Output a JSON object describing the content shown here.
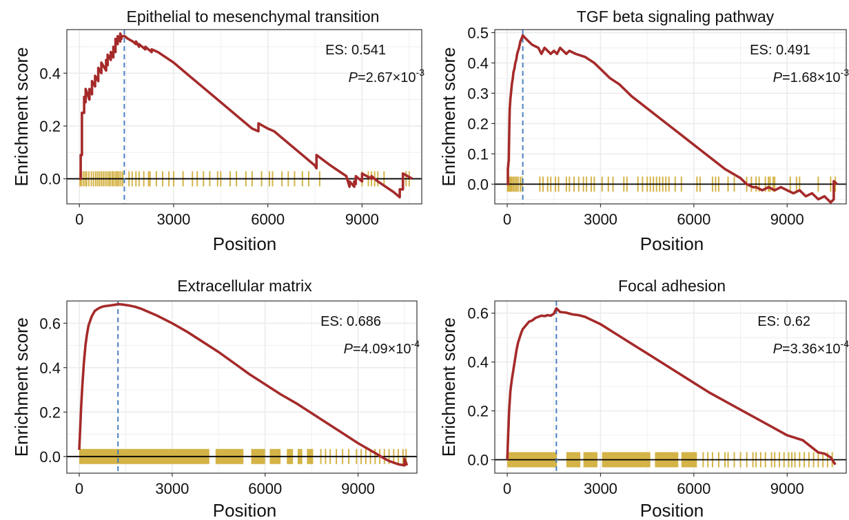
{
  "colors": {
    "curve": "#a52a2a",
    "peak_line": "#4a7fc1",
    "hits": "#d4b347",
    "zero_line": "#000000",
    "grid": "#ebebeb",
    "panel_border": "#333333"
  },
  "chart_data": [
    {
      "type": "line",
      "title": "Epithelial to mesenchymal transition",
      "xlabel": "Position",
      "ylabel": "Enrichment  score",
      "xlim": [
        -400,
        10900
      ],
      "ylim": [
        -0.095,
        0.565
      ],
      "xticks": [
        0,
        3000,
        6000,
        9000
      ],
      "xtick_labels": [
        "0",
        "3000",
        "6000",
        "9000"
      ],
      "yticks": [
        0.0,
        0.2,
        0.4
      ],
      "ytick_labels": [
        "0.0",
        "0.2",
        "0.4"
      ],
      "es_label": "ES: 0.541",
      "p_label": "P",
      "p_value": "=2.67",
      "p_times": "×",
      "p_base": "10",
      "p_exp": "-3",
      "peak_x": 1430,
      "series": [
        {
          "x": [
            0,
            40,
            40,
            80,
            80,
            150,
            150,
            200,
            200,
            320,
            320,
            400,
            400,
            500,
            500,
            600,
            600,
            700,
            700,
            850,
            850,
            900,
            900,
            1000,
            1000,
            1080,
            1080,
            1150,
            1150,
            1220,
            1220,
            1300,
            1300,
            1340,
            1340,
            1430,
            1430,
            1550,
            1700,
            1800,
            1800,
            1900,
            1900,
            2100,
            2100,
            2300,
            2300,
            2500,
            3000,
            3500,
            4000,
            4500,
            5000,
            5500,
            5700,
            5700,
            6000,
            6200,
            6500,
            7000,
            7500,
            7550,
            7550,
            8000,
            8500,
            8600,
            8600,
            8750,
            8750,
            8800,
            8800,
            9000,
            9000,
            9300,
            9300,
            9500,
            10000,
            10200,
            10200,
            10300,
            10300,
            10600
          ],
          "y": [
            0.0,
            0.0,
            0.09,
            0.09,
            0.25,
            0.25,
            0.31,
            0.29,
            0.34,
            0.3,
            0.34,
            0.32,
            0.37,
            0.35,
            0.39,
            0.37,
            0.42,
            0.4,
            0.44,
            0.41,
            0.45,
            0.43,
            0.47,
            0.45,
            0.48,
            0.46,
            0.5,
            0.48,
            0.53,
            0.51,
            0.54,
            0.52,
            0.55,
            0.53,
            0.54,
            0.54,
            0.541,
            0.53,
            0.52,
            0.51,
            0.52,
            0.5,
            0.51,
            0.49,
            0.5,
            0.48,
            0.49,
            0.48,
            0.44,
            0.39,
            0.34,
            0.29,
            0.24,
            0.19,
            0.18,
            0.21,
            0.19,
            0.18,
            0.15,
            0.1,
            0.05,
            0.04,
            0.09,
            0.05,
            0.01,
            -0.03,
            -0.01,
            -0.03,
            -0.01,
            -0.02,
            0.01,
            -0.01,
            0.02,
            0.0,
            0.01,
            -0.01,
            -0.05,
            -0.07,
            -0.04,
            -0.04,
            0.02,
            0.0
          ]
        }
      ],
      "hits": [
        20,
        60,
        120,
        180,
        230,
        300,
        380,
        450,
        520,
        580,
        640,
        700,
        760,
        820,
        880,
        940,
        990,
        1050,
        1100,
        1160,
        1210,
        1260,
        1320,
        1380,
        1580,
        1680,
        1800,
        1900,
        2050,
        2200,
        2250,
        2450,
        2650,
        2850,
        3000,
        3300,
        3600,
        3750,
        3950,
        4150,
        4400,
        4500,
        4800,
        5000,
        5300,
        5500,
        5800,
        6050,
        6150,
        6450,
        6650,
        6850,
        7100,
        7300,
        7650,
        9000,
        9200,
        9300,
        9400,
        9500,
        9700,
        10400,
        10500
      ]
    },
    {
      "type": "line",
      "title": "TGF beta signaling pathway",
      "xlabel": "Position",
      "ylabel": "Enrichment  score",
      "xlim": [
        -400,
        10900
      ],
      "ylim": [
        -0.065,
        0.51
      ],
      "xticks": [
        0,
        3000,
        6000,
        9000
      ],
      "xtick_labels": [
        "0",
        "3000",
        "6000",
        "9000"
      ],
      "yticks": [
        0.0,
        0.1,
        0.2,
        0.3,
        0.4,
        0.5
      ],
      "ytick_labels": [
        "0.0",
        "0.1",
        "0.2",
        "0.3",
        "0.4",
        "0.5"
      ],
      "es_label": "ES: 0.491",
      "p_label": "P",
      "p_value": "=1.68",
      "p_times": "×",
      "p_base": "10",
      "p_exp": "-3",
      "peak_x": 500,
      "series": [
        {
          "x": [
            0,
            20,
            20,
            50,
            60,
            70,
            80,
            100,
            120,
            150,
            180,
            200,
            230,
            260,
            290,
            320,
            350,
            380,
            420,
            460,
            500,
            600,
            800,
            1000,
            1100,
            1200,
            1300,
            1400,
            1500,
            1600,
            1700,
            1800,
            1900,
            2000,
            2200,
            2500,
            2800,
            3000,
            3300,
            3600,
            4000,
            4500,
            5000,
            5500,
            6000,
            6500,
            7000,
            7500,
            7700,
            7900,
            8000,
            8200,
            8400,
            8600,
            8800,
            9000,
            9200,
            9400,
            9600,
            9800,
            10000,
            10200,
            10400,
            10500,
            10500,
            10600
          ],
          "y": [
            0.0,
            0.0,
            0.05,
            0.08,
            0.15,
            0.2,
            0.25,
            0.28,
            0.3,
            0.33,
            0.35,
            0.37,
            0.38,
            0.4,
            0.41,
            0.43,
            0.44,
            0.45,
            0.47,
            0.48,
            0.491,
            0.48,
            0.46,
            0.45,
            0.43,
            0.45,
            0.44,
            0.43,
            0.44,
            0.43,
            0.45,
            0.44,
            0.43,
            0.44,
            0.43,
            0.42,
            0.4,
            0.38,
            0.35,
            0.33,
            0.29,
            0.25,
            0.21,
            0.17,
            0.13,
            0.09,
            0.05,
            0.02,
            0.0,
            -0.01,
            -0.01,
            -0.02,
            -0.01,
            -0.02,
            -0.01,
            -0.02,
            -0.03,
            -0.02,
            -0.04,
            -0.03,
            -0.05,
            -0.04,
            -0.06,
            -0.05,
            0.01,
            0.0
          ]
        }
      ],
      "hits": [
        10,
        30,
        50,
        80,
        110,
        150,
        200,
        250,
        300,
        350,
        420,
        480,
        1050,
        1150,
        1300,
        1400,
        1550,
        1650,
        1900,
        2000,
        2150,
        2300,
        2450,
        2550,
        2700,
        2800,
        3050,
        3250,
        3400,
        3750,
        3850,
        4200,
        4350,
        4500,
        4600,
        4700,
        4800,
        4900,
        5000,
        5100,
        5200,
        5400,
        5600,
        6100,
        6200,
        6600,
        6700,
        6800,
        7100,
        7300,
        7700,
        7850,
        8000,
        8100,
        8300,
        8400,
        8450,
        8550,
        8600,
        9100,
        9300,
        9400,
        10000,
        10400,
        10550
      ]
    },
    {
      "type": "line",
      "title": "Extracellular matrix",
      "xlabel": "Position",
      "ylabel": "Enrichment  score",
      "xlim": [
        -400,
        10900
      ],
      "ylim": [
        -0.075,
        0.7
      ],
      "xticks": [
        0,
        3000,
        6000,
        9000
      ],
      "xtick_labels": [
        "0",
        "3000",
        "6000",
        "9000"
      ],
      "yticks": [
        0.0,
        0.2,
        0.4,
        0.6
      ],
      "ytick_labels": [
        "0.0",
        "0.2",
        "0.4",
        "0.6"
      ],
      "es_label": "ES: 0.686",
      "p_label": "P",
      "p_value": "=4.09",
      "p_times": "×",
      "p_base": "10",
      "p_exp": "-4",
      "peak_x": 1250,
      "series": [
        {
          "x": [
            0,
            30,
            60,
            100,
            150,
            200,
            250,
            300,
            400,
            500,
            600,
            700,
            800,
            1000,
            1200,
            1250,
            1400,
            1600,
            1800,
            2000,
            2500,
            3000,
            3500,
            4000,
            4500,
            5000,
            5500,
            6000,
            6500,
            7000,
            7500,
            8000,
            8500,
            9000,
            9500,
            9800,
            10000,
            10300,
            10500,
            10500,
            10580
          ],
          "y": [
            0.03,
            0.12,
            0.22,
            0.32,
            0.42,
            0.5,
            0.55,
            0.59,
            0.63,
            0.655,
            0.665,
            0.672,
            0.676,
            0.68,
            0.684,
            0.686,
            0.684,
            0.68,
            0.674,
            0.665,
            0.635,
            0.6,
            0.56,
            0.515,
            0.47,
            0.42,
            0.37,
            0.325,
            0.28,
            0.24,
            0.195,
            0.15,
            0.105,
            0.06,
            0.02,
            -0.005,
            -0.02,
            -0.035,
            -0.04,
            -0.01,
            -0.04
          ]
        }
      ],
      "hits_dense": [
        [
          0,
          4200
        ],
        [
          4400,
          5300
        ],
        [
          5550,
          6000
        ],
        [
          6150,
          6500
        ],
        [
          6700,
          6900
        ],
        [
          7050,
          7200
        ],
        [
          7350,
          7550
        ]
      ],
      "hits": [
        7800,
        7950,
        8100,
        8300,
        8500,
        8700,
        8950,
        9100,
        9250,
        9400,
        9550,
        9700,
        9850,
        10000,
        10150,
        10300,
        10450,
        10550
      ]
    },
    {
      "type": "line",
      "title": "Focal adhesion",
      "xlabel": "Position",
      "ylabel": "Enrichment  score",
      "xlim": [
        -400,
        10900
      ],
      "ylim": [
        -0.055,
        0.65
      ],
      "xticks": [
        0,
        3000,
        6000,
        9000
      ],
      "xtick_labels": [
        "0",
        "3000",
        "6000",
        "9000"
      ],
      "yticks": [
        0.0,
        0.2,
        0.4,
        0.6
      ],
      "ytick_labels": [
        "0.0",
        "0.2",
        "0.4",
        "0.6"
      ],
      "es_label": "ES: 0.62",
      "p_label": "P",
      "p_value": "=3.36",
      "p_times": "×",
      "p_base": "10",
      "p_exp": "-4",
      "peak_x": 1580,
      "series": [
        {
          "x": [
            0,
            30,
            60,
            100,
            150,
            200,
            250,
            300,
            350,
            400,
            450,
            500,
            600,
            700,
            800,
            900,
            1000,
            1100,
            1200,
            1300,
            1400,
            1500,
            1580,
            1700,
            1900,
            2100,
            2300,
            2500,
            3000,
            3500,
            4000,
            4500,
            5000,
            5500,
            6000,
            6500,
            7000,
            7500,
            8000,
            8500,
            9000,
            9500,
            9800,
            10000,
            10200,
            10400,
            10550
          ],
          "y": [
            0.0,
            0.1,
            0.2,
            0.28,
            0.33,
            0.37,
            0.41,
            0.45,
            0.48,
            0.5,
            0.52,
            0.535,
            0.55,
            0.565,
            0.57,
            0.58,
            0.585,
            0.59,
            0.588,
            0.592,
            0.59,
            0.598,
            0.62,
            0.605,
            0.602,
            0.595,
            0.592,
            0.585,
            0.555,
            0.515,
            0.475,
            0.435,
            0.395,
            0.355,
            0.315,
            0.275,
            0.24,
            0.205,
            0.17,
            0.135,
            0.1,
            0.08,
            0.05,
            0.03,
            0.025,
            0.01,
            -0.02
          ]
        }
      ],
      "hits_dense": [
        [
          0,
          1600
        ],
        [
          1900,
          2350
        ],
        [
          2450,
          2900
        ],
        [
          3050,
          4600
        ],
        [
          4750,
          5500
        ],
        [
          5600,
          6100
        ]
      ],
      "hits": [
        6300,
        6450,
        6600,
        6800,
        7000,
        7100,
        7300,
        7500,
        7700,
        7900,
        8000,
        8150,
        8300,
        8500,
        8600,
        8750,
        8900,
        9050,
        9150,
        9250,
        9400,
        9550,
        9700,
        9850,
        10000,
        10150,
        10300,
        10450
      ]
    }
  ]
}
